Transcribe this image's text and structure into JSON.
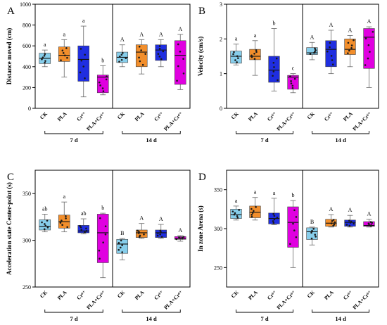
{
  "colors": {
    "CK": "#87ceeb",
    "PLA": "#f28e2b",
    "Cr": "#1f2ee0",
    "PLA+Cr": "#e000e0",
    "axis": "#000000",
    "point": "#1a1a1a"
  },
  "chart_data": [
    {
      "type": "box",
      "panel": "A",
      "ylabel": "Distance moved (cm)",
      "ylim": [
        0,
        1000
      ],
      "yticks": [
        0,
        200,
        400,
        600,
        800,
        1000
      ],
      "groups": [
        {
          "label": "7 d",
          "categories": [
            "CK",
            "PLA",
            "Cr⁶⁺",
            "PLA+Cr⁶⁺"
          ],
          "boxes": [
            {
              "min": 400,
              "q1": 430,
              "median": 480,
              "q3": 530,
              "max": 560,
              "sig": "a"
            },
            {
              "min": 300,
              "q1": 450,
              "median": 510,
              "q3": 590,
              "max": 660,
              "sig": "a"
            },
            {
              "min": 110,
              "q1": 260,
              "median": 470,
              "q3": 600,
              "max": 790,
              "sig": "a"
            },
            {
              "min": 130,
              "q1": 150,
              "median": 300,
              "q3": 320,
              "max": 410,
              "sig": "b"
            }
          ]
        },
        {
          "label": "14 d",
          "categories": [
            "CK",
            "PLA",
            "Cr⁶⁺",
            "PLA+Cr⁶⁺"
          ],
          "boxes": [
            {
              "min": 400,
              "q1": 440,
              "median": 490,
              "q3": 540,
              "max": 610,
              "sig": "A"
            },
            {
              "min": 330,
              "q1": 400,
              "median": 540,
              "q3": 610,
              "max": 660,
              "sig": "A"
            },
            {
              "min": 400,
              "q1": 460,
              "median": 560,
              "q3": 610,
              "max": 660,
              "sig": "A"
            },
            {
              "min": 180,
              "q1": 230,
              "median": 510,
              "q3": 650,
              "max": 710,
              "sig": "A"
            }
          ]
        }
      ]
    },
    {
      "type": "box",
      "panel": "B",
      "ylabel": "Velocity (cm/s)",
      "ylim": [
        0,
        3
      ],
      "yticks": [
        0,
        1,
        2,
        3
      ],
      "groups": [
        {
          "label": "7 d",
          "categories": [
            "CK",
            "PLA",
            "Cr⁶⁺",
            "PLA+Cr⁶⁺"
          ],
          "boxes": [
            {
              "min": 1.25,
              "q1": 1.3,
              "median": 1.5,
              "q3": 1.65,
              "max": 1.85,
              "sig": "a"
            },
            {
              "min": 0.95,
              "q1": 1.4,
              "median": 1.5,
              "q3": 1.7,
              "max": 1.95,
              "sig": "a"
            },
            {
              "min": 0.5,
              "q1": 0.75,
              "median": 1.1,
              "q3": 1.5,
              "max": 2.3,
              "sig": "b"
            },
            {
              "min": 0.45,
              "q1": 0.55,
              "median": 0.9,
              "q3": 0.95,
              "max": 1.0,
              "sig": "c"
            }
          ]
        },
        {
          "label": "14 d",
          "categories": [
            "CK",
            "Cr⁶⁺",
            "PLA",
            "PLA+Cr⁶⁺"
          ],
          "boxes": [
            {
              "min": 1.4,
              "q1": 1.55,
              "median": 1.6,
              "q3": 1.75,
              "max": 1.9,
              "sig": "A"
            },
            {
              "min": 1.0,
              "q1": 1.2,
              "median": 1.7,
              "q3": 1.95,
              "max": 2.25,
              "sig": "A"
            },
            {
              "min": 1.2,
              "q1": 1.55,
              "median": 1.7,
              "q3": 2.0,
              "max": 2.1,
              "sig": "A"
            },
            {
              "min": 0.6,
              "q1": 1.15,
              "median": 2.05,
              "q3": 2.3,
              "max": 2.35,
              "sig": "A"
            }
          ]
        }
      ]
    },
    {
      "type": "box",
      "panel": "C",
      "ylabel": "Acceleration state Center-point (s)",
      "ylim": [
        250,
        375
      ],
      "yticks": [
        250,
        300,
        350
      ],
      "groups": [
        {
          "label": "7 d",
          "categories": [
            "CK",
            "PLA",
            "Cr⁶⁺",
            "PLA+Cr⁶⁺"
          ],
          "boxes": [
            {
              "min": 309,
              "q1": 311,
              "median": 315,
              "q3": 322,
              "max": 328,
              "sig": "ab"
            },
            {
              "min": 309,
              "q1": 313,
              "median": 320,
              "q3": 327,
              "max": 341,
              "sig": "a"
            },
            {
              "min": 307,
              "q1": 308,
              "median": 310,
              "q3": 316,
              "max": 323,
              "sig": "ab"
            },
            {
              "min": 260,
              "q1": 276,
              "median": 308,
              "q3": 328,
              "max": 329,
              "sig": "b"
            }
          ]
        },
        {
          "label": "14 d",
          "categories": [
            "CK",
            "PLA",
            "Cr⁶⁺",
            "PLA+Cr⁶⁺"
          ],
          "boxes": [
            {
              "min": 279,
              "q1": 286,
              "median": 296,
              "q3": 301,
              "max": 302,
              "sig": "B"
            },
            {
              "min": 302,
              "q1": 303,
              "median": 308,
              "q3": 311,
              "max": 318,
              "sig": "A"
            },
            {
              "min": 302,
              "q1": 303,
              "median": 308,
              "q3": 311,
              "max": 317,
              "sig": "A"
            },
            {
              "min": 299,
              "q1": 301,
              "median": 302,
              "q3": 304,
              "max": 305,
              "sig": "A"
            }
          ]
        }
      ]
    },
    {
      "type": "box",
      "panel": "D",
      "ylabel": "In zone Arena (s)",
      "ylim": [
        225,
        375
      ],
      "yticks": [
        250,
        300,
        350
      ],
      "groups": [
        {
          "label": "7 d",
          "categories": [
            "CK",
            "PLA",
            "Cr⁶⁺",
            "PLA+Cr⁶⁺"
          ],
          "boxes": [
            {
              "min": 311,
              "q1": 313,
              "median": 318,
              "q3": 325,
              "max": 329,
              "sig": "a"
            },
            {
              "min": 311,
              "q1": 314,
              "median": 321,
              "q3": 329,
              "max": 340,
              "sig": "a"
            },
            {
              "min": 305,
              "q1": 306,
              "median": 313,
              "q3": 320,
              "max": 339,
              "sig": "a"
            },
            {
              "min": 250,
              "q1": 276,
              "median": 308,
              "q3": 328,
              "max": 336,
              "sig": "b"
            }
          ]
        },
        {
          "label": "14 d",
          "categories": [
            "CK",
            "PLA",
            "Cr⁶⁺",
            "PLA+Cr⁶⁺"
          ],
          "boxes": [
            {
              "min": 279,
              "q1": 286,
              "median": 296,
              "q3": 301,
              "max": 302,
              "sig": "B"
            },
            {
              "min": 302,
              "q1": 303,
              "median": 307,
              "q3": 312,
              "max": 318,
              "sig": "A"
            },
            {
              "min": 302,
              "q1": 303,
              "median": 308,
              "q3": 311,
              "max": 317,
              "sig": "A"
            },
            {
              "min": 302,
              "q1": 303,
              "median": 304,
              "q3": 309,
              "max": 312,
              "sig": "A"
            }
          ]
        }
      ]
    }
  ]
}
